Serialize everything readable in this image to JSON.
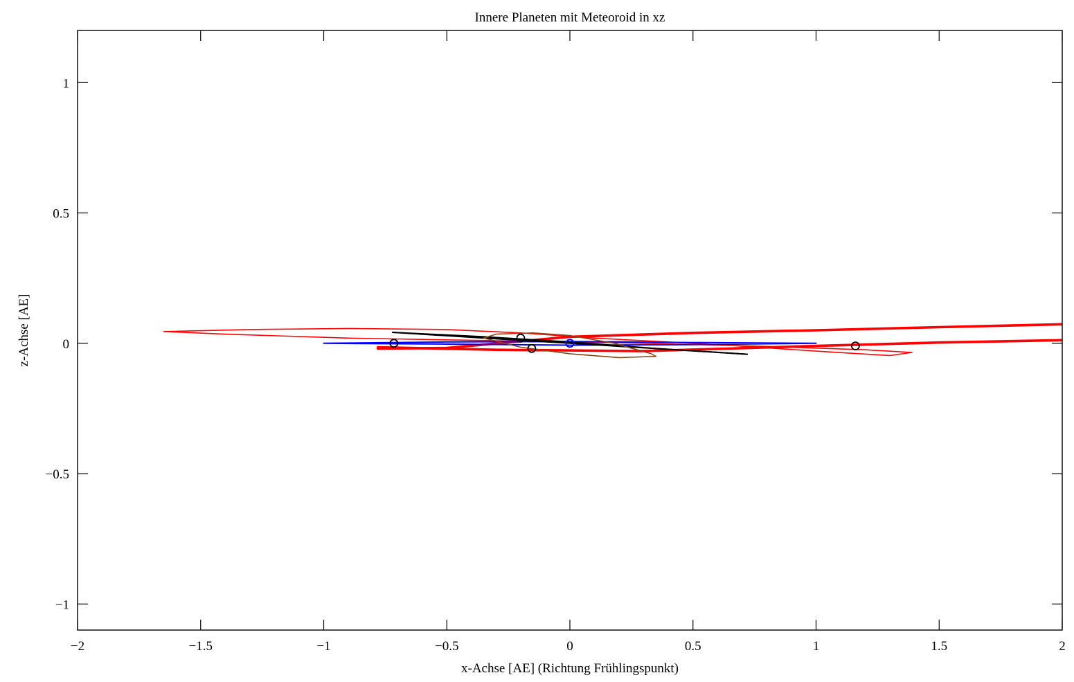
{
  "chart_data": {
    "type": "line",
    "title": "Innere Planeten mit Meteoroid in xz",
    "xlabel": "x-Achse [AE] (Richtung Frühlingspunkt)",
    "ylabel": "z-Achse [AE]",
    "xlim": [
      -2,
      2
    ],
    "ylim": [
      -1.1,
      1.2
    ],
    "grid": false,
    "x_ticks": [
      -2,
      -1.5,
      -1,
      -0.5,
      0,
      0.5,
      1,
      1.5,
      2
    ],
    "x_tick_labels": [
      "−2",
      "−1.5",
      "−1",
      "−0.5",
      "0",
      "0.5",
      "1",
      "1.5",
      "2"
    ],
    "y_ticks": [
      -1,
      -0.5,
      0,
      0.5,
      1
    ],
    "y_tick_labels": [
      "−1",
      "−0.5",
      "0",
      "0.5",
      "1"
    ],
    "series": [
      {
        "color": "#ff0000",
        "style": "thin",
        "points": [
          [
            -1.65,
            0.045
          ],
          [
            -1.3,
            0.053
          ],
          [
            -0.9,
            0.057
          ],
          [
            -0.5,
            0.053
          ],
          [
            -0.2,
            0.04
          ],
          [
            0.1,
            0.02
          ],
          [
            0.6,
            -0.005
          ],
          [
            1.0,
            -0.03
          ],
          [
            1.3,
            -0.047
          ],
          [
            1.39,
            -0.035
          ],
          [
            1.2,
            -0.025
          ],
          [
            0.8,
            -0.012
          ],
          [
            0.3,
            0.0
          ],
          [
            -0.3,
            0.01
          ],
          [
            -0.9,
            0.02
          ],
          [
            -1.4,
            0.035
          ],
          [
            -1.65,
            0.045
          ]
        ]
      },
      {
        "color": "#ff0000",
        "style": "thick",
        "points": [
          [
            -0.78,
            -0.015
          ],
          [
            -0.3,
            -0.025
          ],
          [
            0.3,
            -0.03
          ],
          [
            1.0,
            -0.01
          ],
          [
            1.5,
            0.003
          ],
          [
            2.0,
            0.012
          ]
        ]
      },
      {
        "color": "#ff0000",
        "style": "thick",
        "points": [
          [
            -0.78,
            -0.02
          ],
          [
            -0.5,
            -0.018
          ],
          [
            0.0,
            0.025
          ],
          [
            0.5,
            0.04
          ],
          [
            1.0,
            0.05
          ],
          [
            1.5,
            0.062
          ],
          [
            2.0,
            0.073
          ]
        ]
      },
      {
        "color": "#0000ff",
        "style": "medium",
        "points": [
          [
            -1.0,
            0.0
          ],
          [
            -0.5,
            0.005
          ],
          [
            0.0,
            0.007
          ],
          [
            0.5,
            0.003
          ],
          [
            1.0,
            0.0
          ],
          [
            0.5,
            -0.005
          ],
          [
            0.0,
            -0.007
          ],
          [
            -0.5,
            -0.003
          ],
          [
            -1.0,
            0.0
          ]
        ]
      },
      {
        "color": "#000000",
        "style": "medium",
        "points": [
          [
            -0.72,
            0.042
          ],
          [
            -0.35,
            0.02
          ],
          [
            0.0,
            0.0
          ],
          [
            0.35,
            -0.02
          ],
          [
            0.72,
            -0.042
          ]
        ]
      },
      {
        "color": "#000000",
        "style": "medium",
        "points": [
          [
            -0.72,
            0.042
          ],
          [
            -0.35,
            0.025
          ],
          [
            0.0,
            0.005
          ],
          [
            0.35,
            -0.02
          ],
          [
            0.72,
            -0.042
          ]
        ]
      },
      {
        "color": "#8b4513",
        "style": "thin",
        "points": [
          [
            -0.35,
            0.02
          ],
          [
            -0.3,
            0.035
          ],
          [
            -0.15,
            0.04
          ],
          [
            0.0,
            0.03
          ],
          [
            0.18,
            0.0
          ],
          [
            0.33,
            -0.04
          ],
          [
            0.35,
            -0.05
          ],
          [
            0.2,
            -0.055
          ],
          [
            0.0,
            -0.04
          ],
          [
            -0.2,
            -0.015
          ],
          [
            -0.35,
            0.02
          ]
        ]
      }
    ],
    "markers": [
      {
        "x": -0.715,
        "y": 0.0,
        "color": "#000000"
      },
      {
        "x": -0.2,
        "y": 0.02,
        "color": "#000000"
      },
      {
        "x": -0.155,
        "y": -0.02,
        "color": "#000000"
      },
      {
        "x": 0.0,
        "y": 0.0,
        "color": "#0000ff"
      },
      {
        "x": 1.16,
        "y": -0.01,
        "color": "#000000"
      }
    ]
  }
}
